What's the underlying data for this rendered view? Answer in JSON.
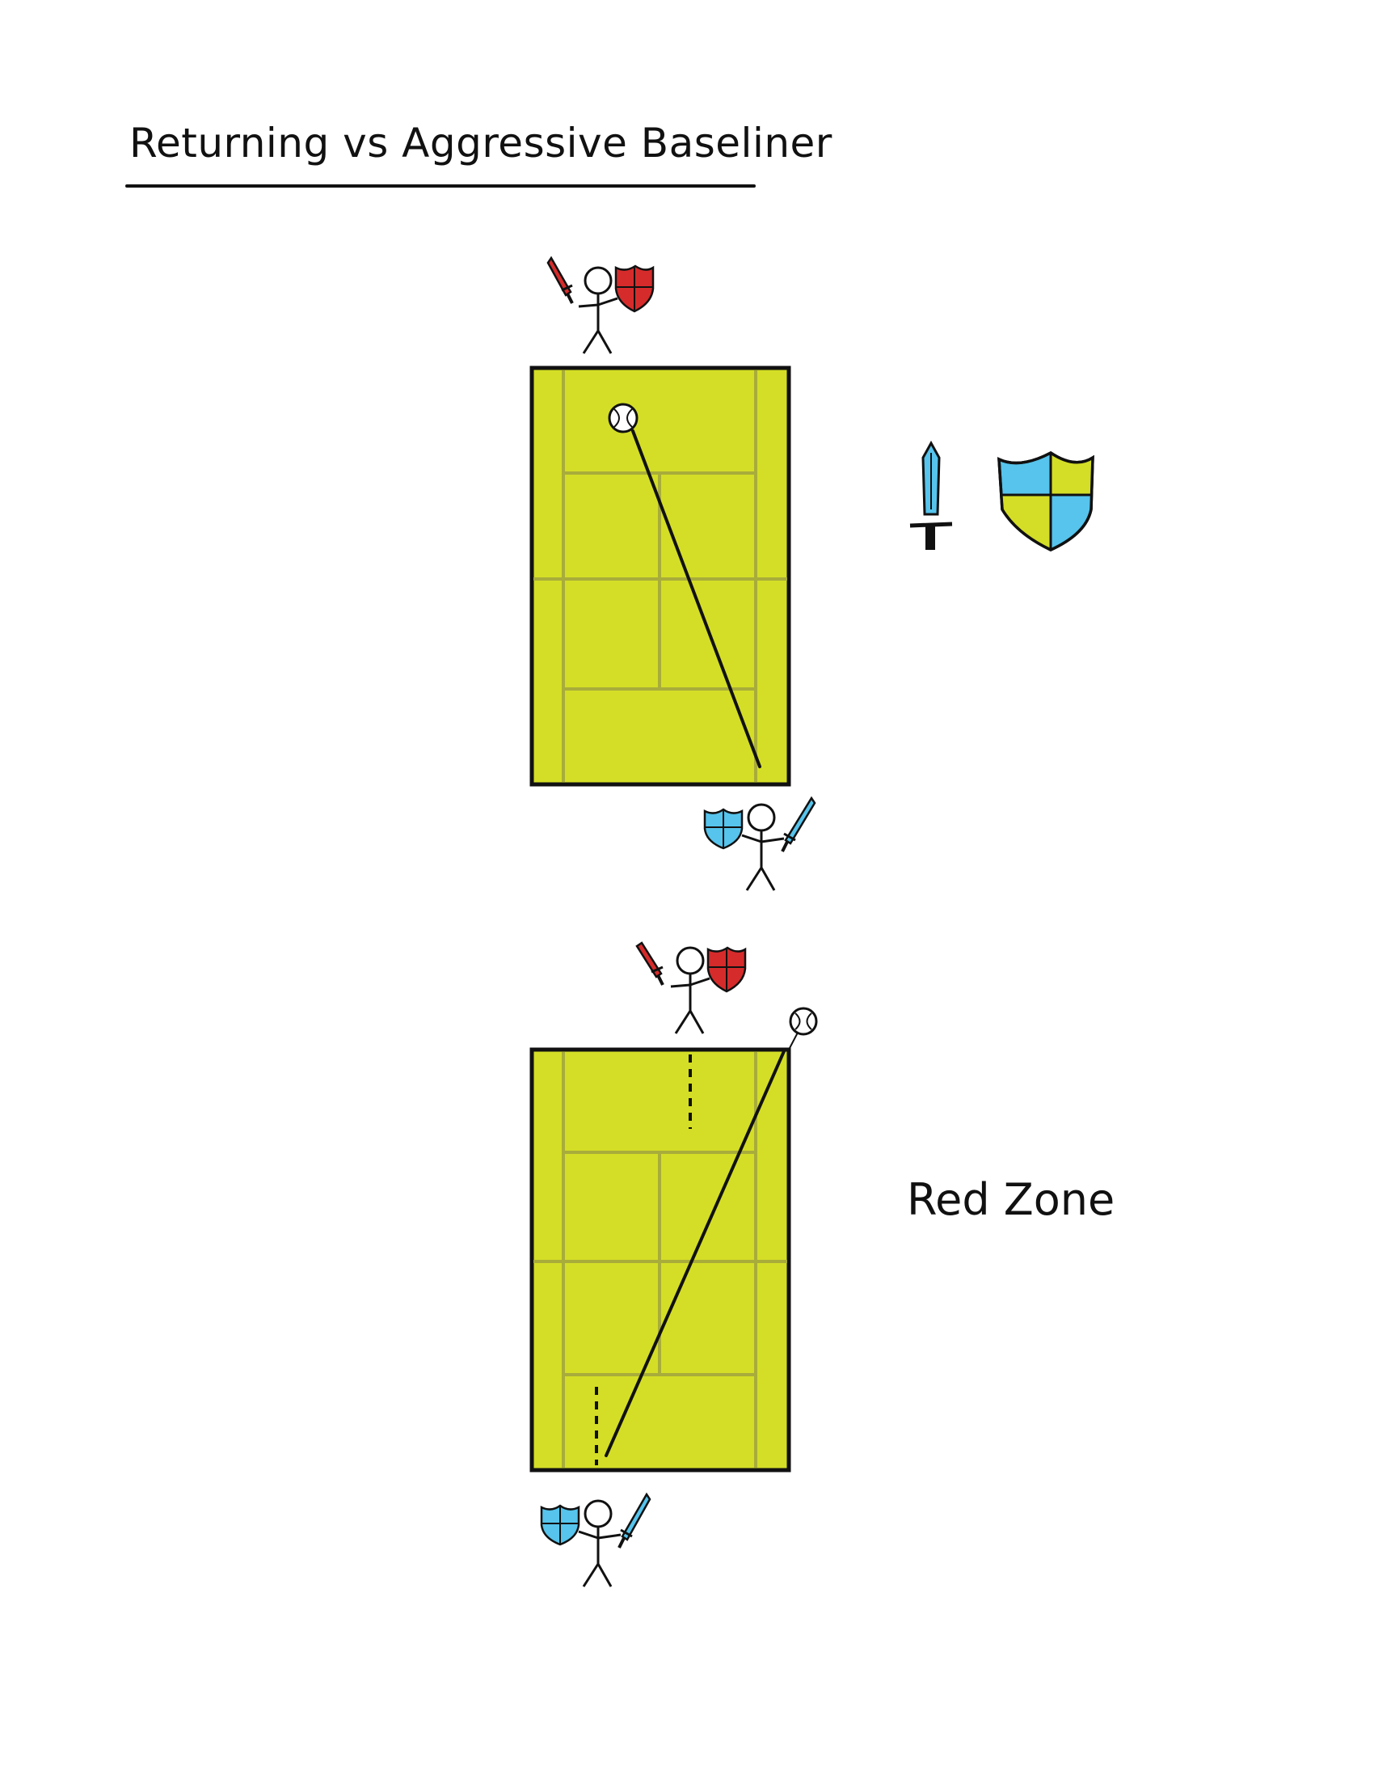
{
  "title": "Returning vs Aggressive Baseliner",
  "zone_label": "Red Zone",
  "colors": {
    "court": "#d4de26",
    "court_lines": "#a8ac3a",
    "opponent": "#d62b2b",
    "player": "#56c4ec",
    "legend_shield_alt": "#d4de26",
    "ink": "#111111"
  },
  "icons": [
    "sword-icon",
    "shield-icon",
    "tennis-ball-icon",
    "stick-figure-icon"
  ]
}
